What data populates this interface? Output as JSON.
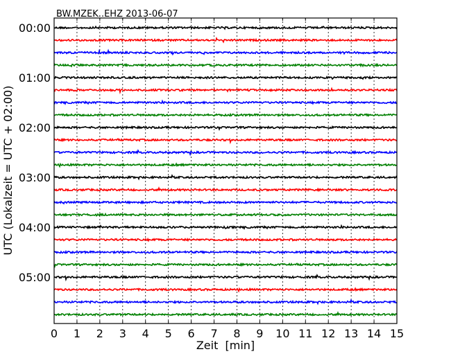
{
  "chart_data": {
    "type": "line",
    "title": "BW.MZEK..EHZ 2013-06-07",
    "xlabel": "Zeit  [min]",
    "ylabel": "UTC (Lokalzeit = UTC + 02:00)",
    "xlim": [
      0,
      15
    ],
    "x_ticks": [
      "0",
      "1",
      "2",
      "3",
      "4",
      "5",
      "6",
      "7",
      "8",
      "9",
      "10",
      "11",
      "12",
      "13",
      "14",
      "15"
    ],
    "y_ticks": [
      "00:00",
      "01:00",
      "02:00",
      "03:00",
      "04:00",
      "05:00"
    ],
    "grid": "vertical dotted",
    "trace_interval_minutes": 15,
    "trace_count": 24,
    "colors": [
      "#000000",
      "#ff0000",
      "#0000ff",
      "#008000"
    ],
    "traces": [
      {
        "start": "00:00",
        "color": "#000000"
      },
      {
        "start": "00:15",
        "color": "#ff0000"
      },
      {
        "start": "00:30",
        "color": "#0000ff"
      },
      {
        "start": "00:45",
        "color": "#008000"
      },
      {
        "start": "01:00",
        "color": "#000000"
      },
      {
        "start": "01:15",
        "color": "#ff0000"
      },
      {
        "start": "01:30",
        "color": "#0000ff"
      },
      {
        "start": "01:45",
        "color": "#008000"
      },
      {
        "start": "02:00",
        "color": "#000000"
      },
      {
        "start": "02:15",
        "color": "#ff0000"
      },
      {
        "start": "02:30",
        "color": "#0000ff"
      },
      {
        "start": "02:45",
        "color": "#008000"
      },
      {
        "start": "03:00",
        "color": "#000000"
      },
      {
        "start": "03:15",
        "color": "#ff0000"
      },
      {
        "start": "03:30",
        "color": "#0000ff"
      },
      {
        "start": "03:45",
        "color": "#008000"
      },
      {
        "start": "04:00",
        "color": "#000000"
      },
      {
        "start": "04:15",
        "color": "#ff0000"
      },
      {
        "start": "04:30",
        "color": "#0000ff"
      },
      {
        "start": "04:45",
        "color": "#008000"
      },
      {
        "start": "05:00",
        "color": "#000000"
      },
      {
        "start": "05:15",
        "color": "#ff0000"
      },
      {
        "start": "05:30",
        "color": "#0000ff"
      },
      {
        "start": "05:45",
        "color": "#008000"
      }
    ]
  }
}
